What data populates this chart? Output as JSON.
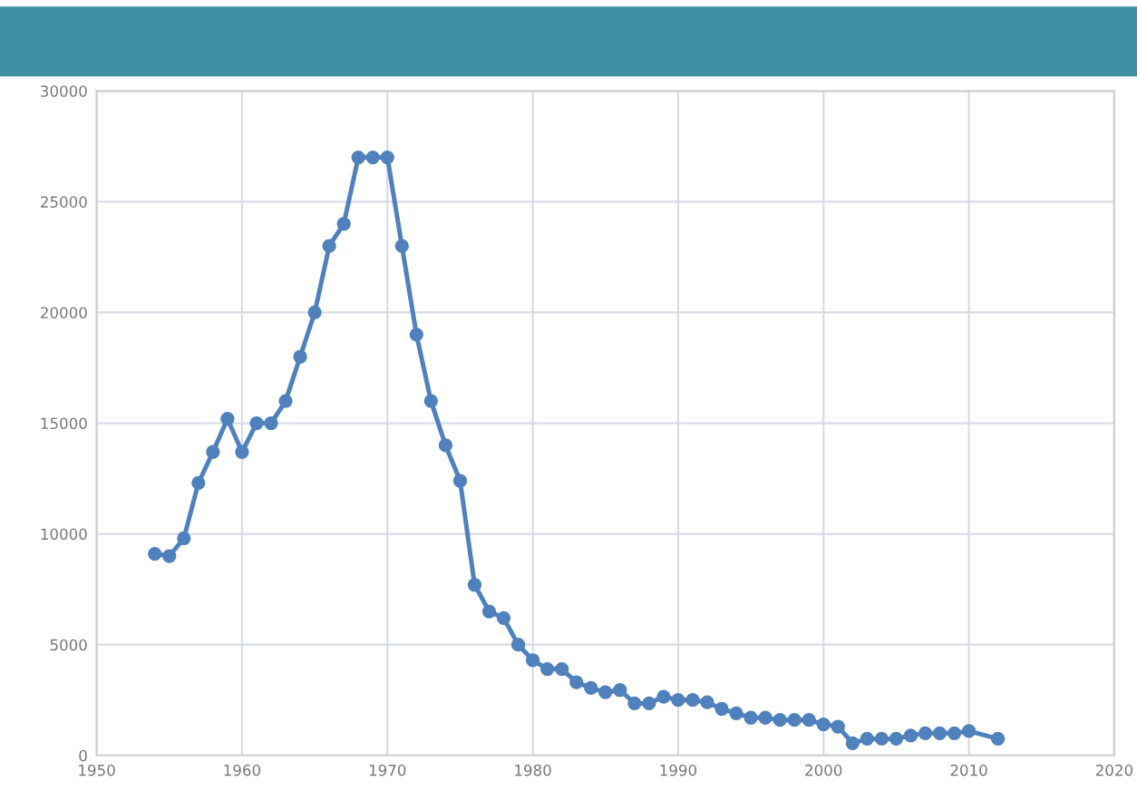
{
  "chart_data": {
    "type": "line",
    "x": [
      1954,
      1955,
      1956,
      1957,
      1958,
      1959,
      1960,
      1961,
      1962,
      1963,
      1964,
      1965,
      1966,
      1967,
      1968,
      1969,
      1970,
      1971,
      1972,
      1973,
      1974,
      1975,
      1976,
      1977,
      1978,
      1979,
      1980,
      1981,
      1982,
      1983,
      1984,
      1985,
      1986,
      1987,
      1988,
      1989,
      1990,
      1991,
      1992,
      1993,
      1994,
      1995,
      1996,
      1997,
      1998,
      1999,
      2000,
      2001,
      2002,
      2003,
      2004,
      2005,
      2006,
      2007,
      2008,
      2009,
      2010,
      2012
    ],
    "series": [
      {
        "color": "#4f81bd",
        "values": [
          9100,
          9000,
          9800,
          12300,
          13700,
          15200,
          13700,
          15000,
          15000,
          16000,
          18000,
          20000,
          23000,
          24000,
          27000,
          27000,
          27000,
          23000,
          19000,
          16000,
          14000,
          12400,
          7700,
          6500,
          6200,
          5000,
          4300,
          3900,
          3900,
          3300,
          3050,
          2850,
          2950,
          2350,
          2350,
          2650,
          2500,
          2500,
          2400,
          2100,
          1900,
          1700,
          1700,
          1600,
          1600,
          1600,
          1400,
          1300,
          550,
          750,
          750,
          750,
          900,
          1000,
          1000,
          1000,
          1100,
          750
        ]
      }
    ],
    "xlim": [
      1950,
      2020
    ],
    "xticks": [
      1950,
      1960,
      1970,
      1980,
      1990,
      2000,
      2010,
      2020
    ],
    "ylim": [
      0,
      30000
    ],
    "yticks": [
      0,
      5000,
      10000,
      15000,
      20000,
      25000,
      30000
    ],
    "grid": true,
    "marker": "circle",
    "line_style": "solid",
    "legend": false
  }
}
